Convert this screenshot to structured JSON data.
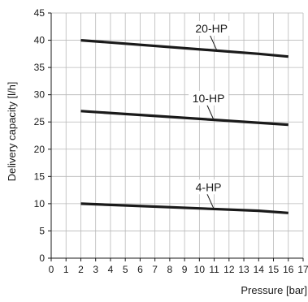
{
  "chart_data": {
    "type": "line",
    "xlabel": "Pressure [bar]",
    "ylabel": "Delivery capacity [l/h]",
    "xlim": [
      0,
      17
    ],
    "ylim": [
      0,
      45
    ],
    "xticks": [
      0,
      1,
      2,
      3,
      4,
      5,
      6,
      7,
      8,
      9,
      10,
      11,
      12,
      13,
      14,
      15,
      16,
      17
    ],
    "yticks": [
      0,
      5,
      10,
      15,
      20,
      25,
      30,
      35,
      40,
      45
    ],
    "grid": true,
    "series": [
      {
        "name": "20-HP",
        "x": [
          2,
          14,
          16
        ],
        "y": [
          40,
          37.5,
          37
        ],
        "label_at": [
          11.2,
          38.0
        ]
      },
      {
        "name": "10-HP",
        "x": [
          2,
          16
        ],
        "y": [
          27,
          24.5
        ],
        "label_at": [
          11.0,
          25.2
        ]
      },
      {
        "name": "4-HP",
        "x": [
          2,
          14,
          16
        ],
        "y": [
          10,
          8.7,
          8.3
        ],
        "label_at": [
          11.0,
          8.9
        ]
      }
    ],
    "colors": {
      "line": "#1a1a1a",
      "grid": "#b9b9b9",
      "background": "#ffffff"
    }
  }
}
